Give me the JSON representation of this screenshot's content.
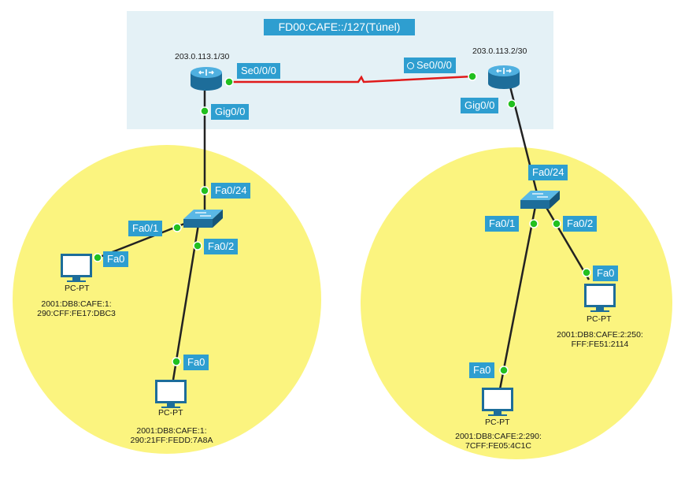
{
  "tunnel_label": "FD00:CAFE::/127(Túnel)",
  "routers": [
    {
      "ip": "203.0.113.1/30",
      "serial_port": "Se0/0/0",
      "gig_port": "Gig0/0",
      "has_clock_icon": false
    },
    {
      "ip": "203.0.113.2/30",
      "serial_port": "Se0/0/0",
      "gig_port": "Gig0/0",
      "has_clock_icon": true
    }
  ],
  "switches": [
    {
      "uplink": "Fa0/24",
      "port1": "Fa0/1",
      "port2": "Fa0/2"
    },
    {
      "uplink": "Fa0/24",
      "port1": "Fa0/1",
      "port2": "Fa0/2"
    }
  ],
  "pcs": [
    {
      "label": "PC-PT",
      "port": "Fa0",
      "addr1": "2001:DB8:CAFE:1:",
      "addr2": "290:CFF:FE17:DBC3"
    },
    {
      "label": "PC-PT",
      "port": "Fa0",
      "addr1": "2001:DB8:CAFE:1:",
      "addr2": "290:21FF:FEDD:7A8A"
    },
    {
      "label": "PC-PT",
      "port": "Fa0",
      "addr1": "2001:DB8:CAFE:2:250:",
      "addr2": "FFF:FE51:2114"
    },
    {
      "label": "PC-PT",
      "port": "Fa0",
      "addr1": "2001:DB8:CAFE:2:290:",
      "addr2": "7CFF:FE05:4C1C"
    }
  ],
  "colors": {
    "lan_area": "#fbf47f",
    "wan_area": "#e4f1f6",
    "port_label": "#2e9ed0",
    "serial_link": "#e01a1a",
    "ethernet_link": "#222222",
    "link_up_dot": "#22c01f"
  }
}
